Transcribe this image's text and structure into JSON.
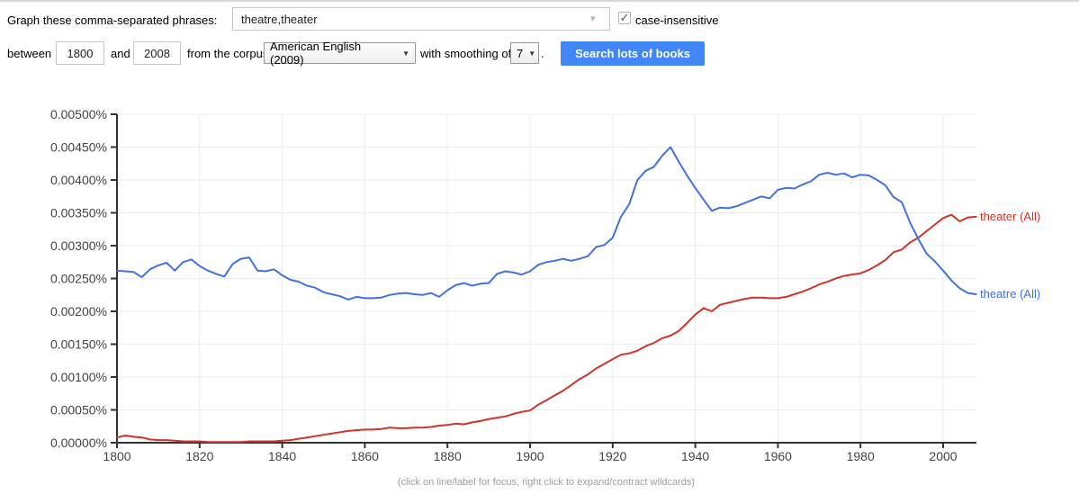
{
  "form": {
    "phrase_label": "Graph these comma-separated phrases:",
    "phrase_value": "theatre,theater",
    "case_insensitive_label": "case-insensitive",
    "case_insensitive_checked": true,
    "between_label": "between",
    "year_start": "1800",
    "and_label": "and",
    "year_end": "2008",
    "corpus_label": "from the corpus",
    "corpus_value": "American English (2009)",
    "smoothing_label": "with smoothing of",
    "smoothing_value": "7",
    "period_after_smoothing": ".",
    "search_button_label": "Search lots of books",
    "button_color": "#4285f4"
  },
  "icons": {
    "checkmark": "✓",
    "select_arrow": "▼",
    "combo_arrow": "▾"
  },
  "chart_data": {
    "type": "line",
    "title": "",
    "xlabel": "",
    "ylabel": "",
    "grid": true,
    "legend_position": "right-of-line-end",
    "ylim": [
      0,
      0.005
    ],
    "xlim": [
      1800,
      2008
    ],
    "ytick_values": [
      0,
      0.0005,
      0.001,
      0.0015,
      0.002,
      0.0025,
      0.003,
      0.0035,
      0.004,
      0.0045,
      0.005
    ],
    "ytick_labels": [
      "0.00000%",
      "0.00050%",
      "0.00100%",
      "0.00150%",
      "0.00200%",
      "0.00250%",
      "0.00300%",
      "0.00350%",
      "0.00400%",
      "0.00450%",
      "0.00500%"
    ],
    "xticks": [
      1800,
      1820,
      1840,
      1860,
      1880,
      1900,
      1920,
      1940,
      1960,
      1980,
      2000
    ],
    "x": [
      1800,
      1802,
      1804,
      1806,
      1808,
      1810,
      1812,
      1814,
      1816,
      1818,
      1820,
      1822,
      1824,
      1826,
      1828,
      1830,
      1832,
      1834,
      1836,
      1838,
      1840,
      1842,
      1844,
      1846,
      1848,
      1850,
      1852,
      1854,
      1856,
      1858,
      1860,
      1862,
      1864,
      1866,
      1868,
      1870,
      1872,
      1874,
      1876,
      1878,
      1880,
      1882,
      1884,
      1886,
      1888,
      1890,
      1892,
      1894,
      1896,
      1898,
      1900,
      1902,
      1904,
      1906,
      1908,
      1910,
      1912,
      1914,
      1916,
      1918,
      1920,
      1922,
      1924,
      1926,
      1928,
      1930,
      1932,
      1934,
      1936,
      1938,
      1940,
      1942,
      1944,
      1946,
      1948,
      1950,
      1952,
      1954,
      1956,
      1958,
      1960,
      1962,
      1964,
      1966,
      1968,
      1970,
      1972,
      1974,
      1976,
      1978,
      1980,
      1982,
      1984,
      1986,
      1988,
      1990,
      1992,
      1994,
      1996,
      1998,
      2000,
      2002,
      2004,
      2006,
      2008
    ],
    "series": [
      {
        "name": "theater (All)",
        "color": "#d23327",
        "values": [
          8e-05,
          0.00011,
          9e-05,
          8e-05,
          5e-05,
          4e-05,
          4e-05,
          3e-05,
          2e-05,
          2e-05,
          2e-05,
          1e-05,
          1e-05,
          1e-05,
          1e-05,
          1e-05,
          2e-05,
          2e-05,
          2e-05,
          2e-05,
          3e-05,
          4e-05,
          6e-05,
          8e-05,
          0.0001,
          0.00012,
          0.00014,
          0.00016,
          0.00018,
          0.00019,
          0.0002,
          0.0002,
          0.00021,
          0.00023,
          0.00022,
          0.00022,
          0.00023,
          0.00023,
          0.00024,
          0.00026,
          0.00027,
          0.00029,
          0.00028,
          0.00031,
          0.00033,
          0.00036,
          0.00038,
          0.0004,
          0.00044,
          0.00047,
          0.00049,
          0.00058,
          0.00065,
          0.00072,
          0.00079,
          0.00088,
          0.00097,
          0.00104,
          0.00113,
          0.0012,
          0.00127,
          0.00134,
          0.00136,
          0.0014,
          0.00147,
          0.00152,
          0.00159,
          0.00163,
          0.0017,
          0.00182,
          0.00195,
          0.00205,
          0.002,
          0.0021,
          0.00213,
          0.00216,
          0.00219,
          0.00221,
          0.00221,
          0.0022,
          0.0022,
          0.00222,
          0.00226,
          0.0023,
          0.00235,
          0.00241,
          0.00245,
          0.0025,
          0.00254,
          0.00256,
          0.00258,
          0.00263,
          0.0027,
          0.00278,
          0.0029,
          0.00294,
          0.00305,
          0.00312,
          0.00322,
          0.00332,
          0.00342,
          0.00347,
          0.00337,
          0.00343,
          0.00344
        ]
      },
      {
        "name": "theatre (All)",
        "color": "#4172e0",
        "values": [
          0.00262,
          0.00261,
          0.0026,
          0.00252,
          0.00264,
          0.0027,
          0.00274,
          0.00262,
          0.00275,
          0.00279,
          0.00269,
          0.00262,
          0.00257,
          0.00253,
          0.00272,
          0.0028,
          0.00282,
          0.00262,
          0.00261,
          0.00264,
          0.00255,
          0.00248,
          0.00245,
          0.00239,
          0.00236,
          0.00229,
          0.00226,
          0.00223,
          0.00218,
          0.00222,
          0.0022,
          0.0022,
          0.00221,
          0.00225,
          0.00227,
          0.00228,
          0.00226,
          0.00225,
          0.00228,
          0.00222,
          0.00232,
          0.0024,
          0.00243,
          0.00239,
          0.00242,
          0.00243,
          0.00257,
          0.00261,
          0.00259,
          0.00256,
          0.00261,
          0.00271,
          0.00275,
          0.00277,
          0.0028,
          0.00277,
          0.0028,
          0.00284,
          0.00298,
          0.00301,
          0.00312,
          0.00344,
          0.00363,
          0.004,
          0.00414,
          0.0042,
          0.00437,
          0.0045,
          0.00428,
          0.00407,
          0.00388,
          0.0037,
          0.00353,
          0.00358,
          0.00357,
          0.0036,
          0.00365,
          0.0037,
          0.00375,
          0.00372,
          0.00385,
          0.00388,
          0.00387,
          0.00393,
          0.00398,
          0.00408,
          0.00411,
          0.00408,
          0.0041,
          0.00404,
          0.00408,
          0.00407,
          0.004,
          0.00392,
          0.00374,
          0.00366,
          0.00335,
          0.0031,
          0.00288,
          0.00276,
          0.00262,
          0.00247,
          0.00235,
          0.00228,
          0.00226
        ]
      }
    ],
    "footnote": "(click on line/label for focus, right click to expand/contract wildcards)"
  }
}
